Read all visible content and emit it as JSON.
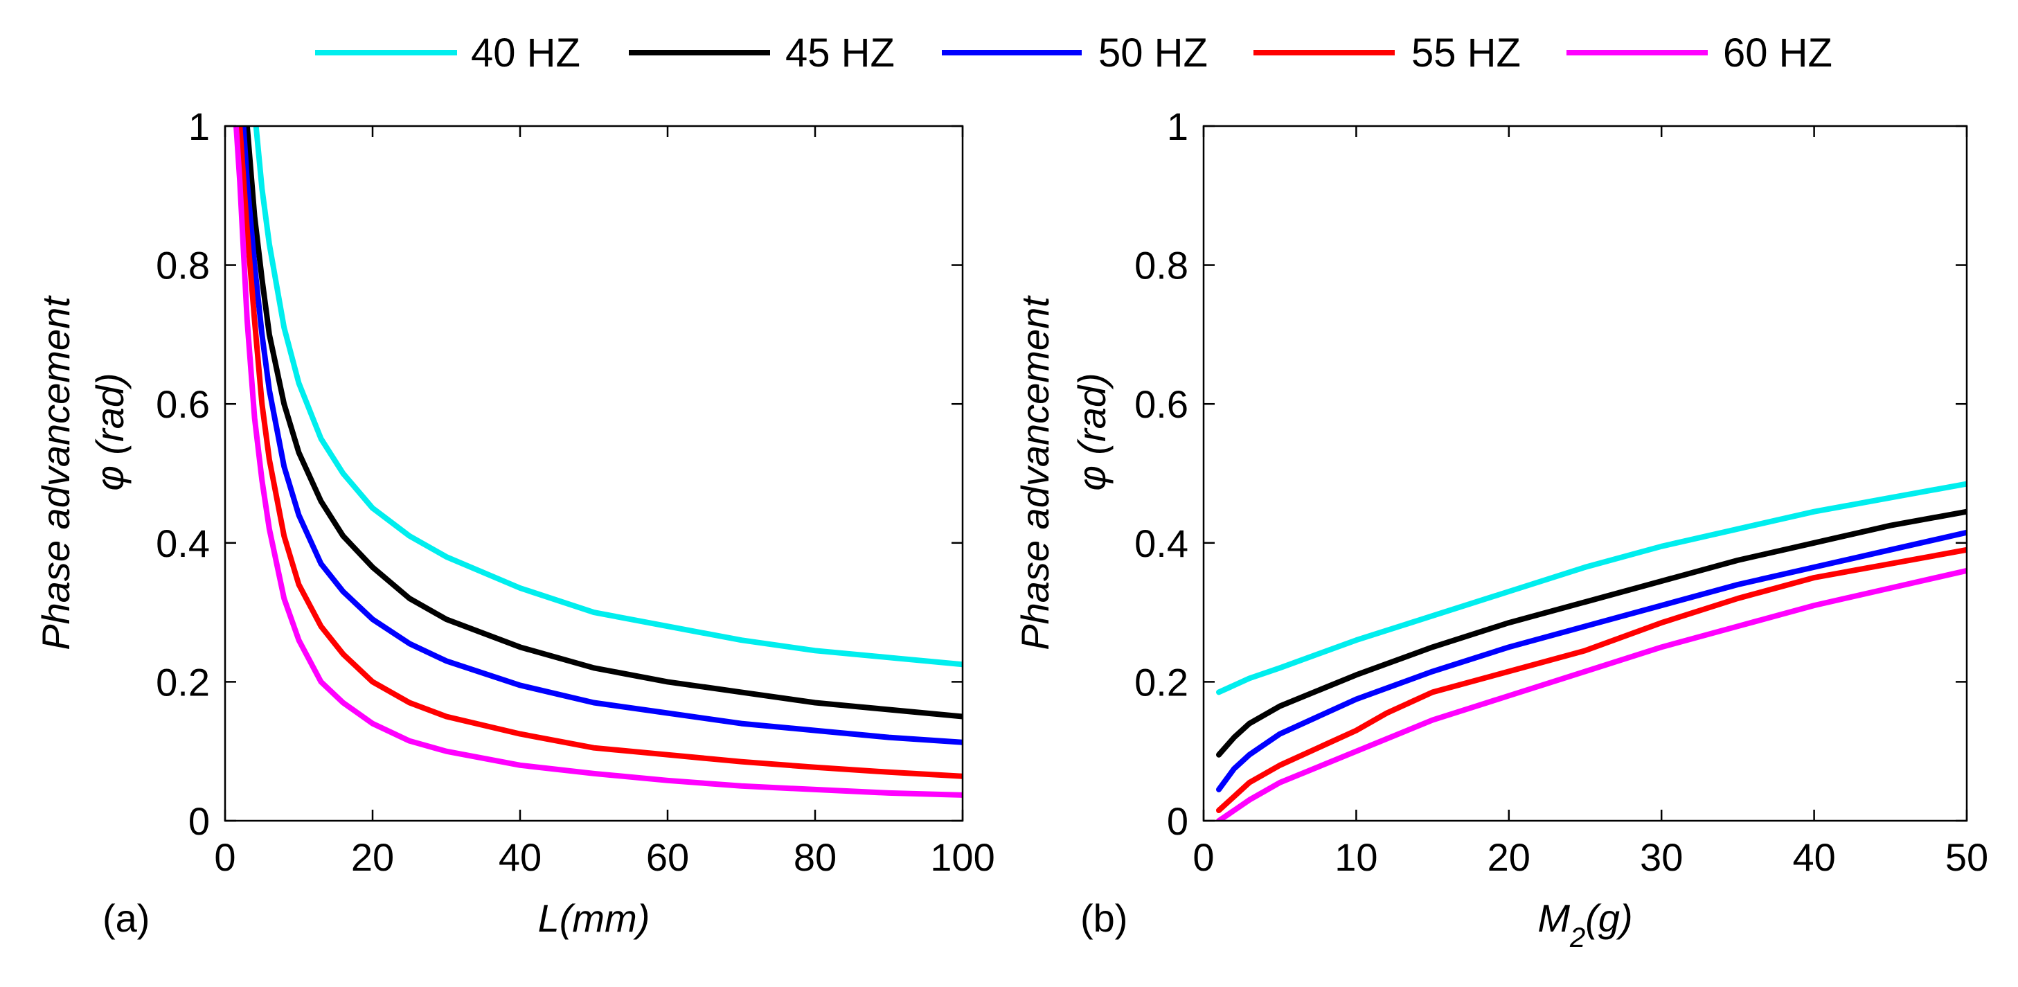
{
  "legend": {
    "entries": [
      {
        "label": "40 HZ",
        "color": "#00eeee"
      },
      {
        "label": "45 HZ",
        "color": "#000000"
      },
      {
        "label": "50 HZ",
        "color": "#0000ff"
      },
      {
        "label": "55 HZ",
        "color": "#ff0000"
      },
      {
        "label": "60 HZ",
        "color": "#ff00ff"
      }
    ]
  },
  "chart_data": [
    {
      "type": "line",
      "panel_label": "(a)",
      "xlabel": "L(mm)",
      "ylabel": "Phase advancement",
      "ylabel2": "φ (rad)",
      "xlim": [
        0,
        100
      ],
      "ylim": [
        0,
        1
      ],
      "xticks": [
        "0",
        "20",
        "40",
        "60",
        "80",
        "100"
      ],
      "yticks": [
        "0",
        "0.2",
        "0.4",
        "0.6",
        "0.8",
        "1"
      ],
      "grid": false,
      "series": [
        {
          "name": "40 HZ",
          "color": "#00eeee",
          "x": [
            4.2,
            5,
            6,
            8,
            10,
            13,
            16,
            20,
            25,
            30,
            40,
            50,
            60,
            70,
            80,
            90,
            100
          ],
          "y": [
            1.0,
            0.91,
            0.83,
            0.71,
            0.63,
            0.55,
            0.5,
            0.45,
            0.41,
            0.38,
            0.335,
            0.3,
            0.28,
            0.26,
            0.245,
            0.235,
            0.225
          ]
        },
        {
          "name": "45 HZ",
          "color": "#000000",
          "x": [
            3,
            4,
            5,
            6,
            8,
            10,
            13,
            16,
            20,
            25,
            30,
            40,
            50,
            60,
            70,
            80,
            90,
            100
          ],
          "y": [
            1.0,
            0.87,
            0.78,
            0.7,
            0.6,
            0.53,
            0.46,
            0.41,
            0.365,
            0.32,
            0.29,
            0.25,
            0.22,
            0.2,
            0.185,
            0.17,
            0.16,
            0.15
          ]
        },
        {
          "name": "50 HZ",
          "color": "#0000ff",
          "x": [
            2.5,
            3,
            4,
            5,
            6,
            8,
            10,
            13,
            16,
            20,
            25,
            30,
            40,
            50,
            60,
            70,
            80,
            90,
            100
          ],
          "y": [
            1.0,
            0.92,
            0.8,
            0.7,
            0.62,
            0.51,
            0.44,
            0.37,
            0.33,
            0.29,
            0.255,
            0.23,
            0.195,
            0.17,
            0.155,
            0.14,
            0.13,
            0.12,
            0.113
          ]
        },
        {
          "name": "55 HZ",
          "color": "#ff0000",
          "x": [
            2,
            3,
            4,
            5,
            6,
            8,
            10,
            13,
            16,
            20,
            25,
            30,
            40,
            50,
            60,
            70,
            80,
            90,
            100
          ],
          "y": [
            1.0,
            0.85,
            0.72,
            0.6,
            0.52,
            0.41,
            0.34,
            0.28,
            0.24,
            0.2,
            0.17,
            0.15,
            0.125,
            0.105,
            0.095,
            0.085,
            0.077,
            0.07,
            0.064
          ]
        },
        {
          "name": "60 HZ",
          "color": "#ff00ff",
          "x": [
            1.5,
            2,
            3,
            4,
            5,
            6,
            8,
            10,
            13,
            16,
            20,
            25,
            30,
            40,
            50,
            60,
            70,
            80,
            90,
            100
          ],
          "y": [
            1.0,
            0.92,
            0.72,
            0.58,
            0.49,
            0.42,
            0.32,
            0.26,
            0.2,
            0.17,
            0.14,
            0.115,
            0.1,
            0.08,
            0.068,
            0.058,
            0.05,
            0.045,
            0.04,
            0.037
          ]
        }
      ]
    },
    {
      "type": "line",
      "panel_label": "(b)",
      "xlabel": "M",
      "xlabel_sub": "2",
      "xlabel_suffix": "(g)",
      "ylabel": "Phase advancement",
      "ylabel2": "φ (rad)",
      "xlim": [
        0,
        50
      ],
      "ylim": [
        0,
        1
      ],
      "xticks": [
        "0",
        "10",
        "20",
        "30",
        "40",
        "50"
      ],
      "yticks": [
        "0",
        "0.2",
        "0.4",
        "0.6",
        "0.8",
        "1"
      ],
      "grid": false,
      "series": [
        {
          "name": "40 HZ",
          "color": "#00eeee",
          "x": [
            1,
            2,
            3,
            5,
            10,
            15,
            20,
            25,
            30,
            35,
            40,
            45,
            50
          ],
          "y": [
            0.185,
            0.195,
            0.205,
            0.22,
            0.26,
            0.295,
            0.33,
            0.365,
            0.395,
            0.42,
            0.445,
            0.465,
            0.485
          ]
        },
        {
          "name": "45 HZ",
          "color": "#000000",
          "x": [
            1,
            2,
            3,
            5,
            10,
            15,
            20,
            25,
            30,
            35,
            40,
            45,
            50
          ],
          "y": [
            0.095,
            0.12,
            0.14,
            0.165,
            0.21,
            0.25,
            0.285,
            0.315,
            0.345,
            0.375,
            0.4,
            0.425,
            0.445
          ]
        },
        {
          "name": "50 HZ",
          "color": "#0000ff",
          "x": [
            1,
            2,
            3,
            5,
            10,
            15,
            20,
            25,
            30,
            35,
            40,
            45,
            50
          ],
          "y": [
            0.045,
            0.075,
            0.095,
            0.125,
            0.175,
            0.215,
            0.25,
            0.28,
            0.31,
            0.34,
            0.365,
            0.39,
            0.415
          ]
        },
        {
          "name": "55 HZ",
          "color": "#ff0000",
          "x": [
            1,
            2,
            3,
            5,
            8,
            10,
            12,
            15,
            20,
            25,
            30,
            35,
            40,
            45,
            50
          ],
          "y": [
            0.015,
            0.035,
            0.055,
            0.08,
            0.11,
            0.13,
            0.155,
            0.185,
            0.215,
            0.245,
            0.285,
            0.32,
            0.35,
            0.37,
            0.39
          ]
        },
        {
          "name": "60 HZ",
          "color": "#ff00ff",
          "x": [
            1,
            2,
            3,
            5,
            10,
            15,
            20,
            25,
            30,
            35,
            40,
            45,
            50
          ],
          "y": [
            0.0,
            0.015,
            0.03,
            0.055,
            0.1,
            0.145,
            0.18,
            0.215,
            0.25,
            0.28,
            0.31,
            0.335,
            0.36
          ]
        }
      ]
    }
  ]
}
